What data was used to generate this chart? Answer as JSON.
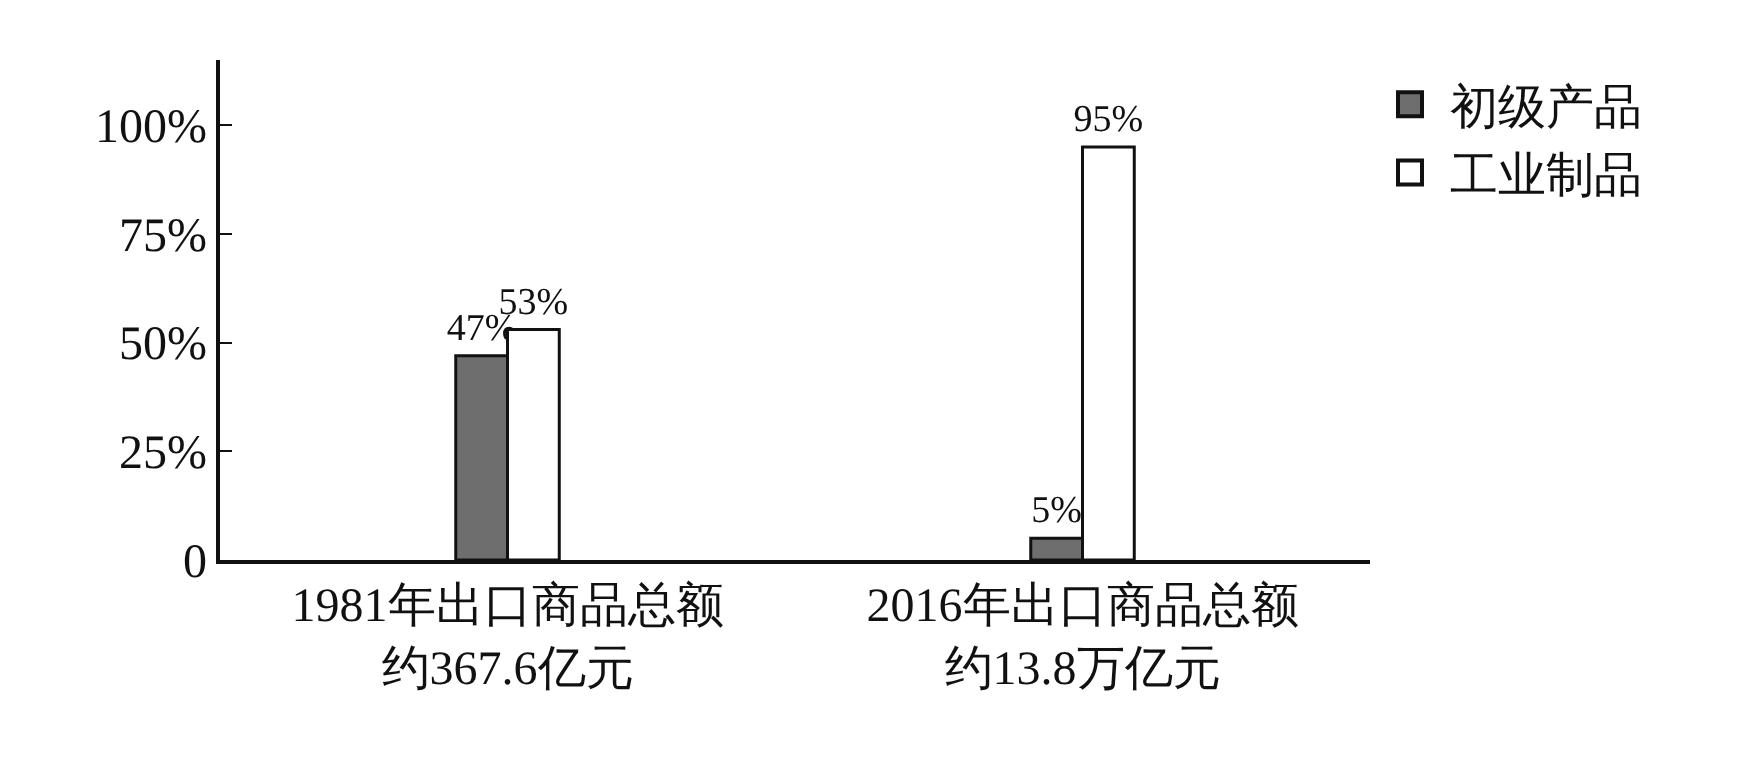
{
  "chart_data": {
    "type": "bar",
    "categories": [
      "1981年出口商品总额约367.6亿元",
      "2016年出口商品总额约13.8万亿元"
    ],
    "series": [
      {
        "name": "初级产品",
        "color": "#6e6e6e",
        "values": [
          47,
          5
        ],
        "value_labels": [
          "47%",
          "5%"
        ]
      },
      {
        "name": "工业制品",
        "color": "#ffffff",
        "values": [
          53,
          95
        ],
        "value_labels": [
          "53%",
          "95%"
        ]
      }
    ],
    "ylim": [
      0,
      115
    ],
    "yticks": [
      {
        "value": 0,
        "label": "0"
      },
      {
        "value": 25,
        "label": "25%"
      },
      {
        "value": 50,
        "label": "50%"
      },
      {
        "value": 75,
        "label": "75%"
      },
      {
        "value": 100,
        "label": "100%"
      }
    ],
    "grid": false,
    "legend": "top right"
  }
}
